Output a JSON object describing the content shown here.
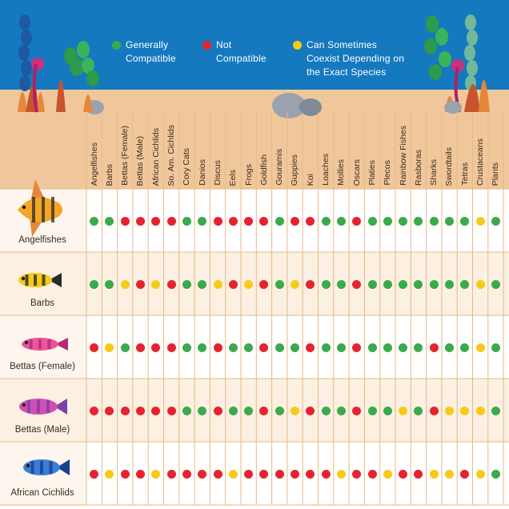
{
  "colors": {
    "green": "#3aaa4c",
    "red": "#e5232e",
    "yellow": "#f6cb17",
    "ocean": "#1579bf",
    "sand": "#f0c79a",
    "sand_dark": "#e7b98a",
    "row_alt": "#fbf0e2"
  },
  "legend": [
    {
      "key": "green",
      "line1": "Generally",
      "line2": "Compatible",
      "line3": ""
    },
    {
      "key": "red",
      "line1": "Not",
      "line2": "Compatible",
      "line3": ""
    },
    {
      "key": "yellow",
      "line1": "Can Sometimes",
      "line2": "Coexist Depending on",
      "line3": "the Exact Species"
    }
  ],
  "columns": [
    "Angelfishes",
    "Barbs",
    "Bettas (Female)",
    "Bettas (Male)",
    "African Cichlids",
    "So. Am. Cichlids",
    "Cory Cats",
    "Danios",
    "Discus",
    "Eels",
    "Frogs",
    "Goldfish",
    "Gouramis",
    "Guppies",
    "Koi",
    "Loaches",
    "Mollies",
    "Oscars",
    "Platies",
    "Plecos",
    "Rainbow Fishes",
    "Rasboras",
    "Sharks",
    "Swordtails",
    "Tetras",
    "Crustaceans",
    "Plants"
  ],
  "rows": [
    {
      "label": "Angelfishes",
      "icon": "angelfish-icon",
      "values": [
        "g",
        "g",
        "r",
        "r",
        "r",
        "r",
        "g",
        "g",
        "r",
        "r",
        "r",
        "r",
        "g",
        "r",
        "r",
        "g",
        "g",
        "r",
        "g",
        "g",
        "g",
        "g",
        "g",
        "g",
        "g",
        "y",
        "g"
      ]
    },
    {
      "label": "Barbs",
      "icon": "barb-fish-icon",
      "values": [
        "g",
        "g",
        "y",
        "r",
        "y",
        "r",
        "g",
        "g",
        "y",
        "r",
        "y",
        "r",
        "g",
        "y",
        "r",
        "g",
        "g",
        "r",
        "g",
        "g",
        "g",
        "g",
        "g",
        "g",
        "g",
        "y",
        "g"
      ]
    },
    {
      "label": "Bettas (Female)",
      "icon": "female-betta-icon",
      "values": [
        "r",
        "y",
        "g",
        "r",
        "r",
        "r",
        "g",
        "g",
        "r",
        "g",
        "g",
        "r",
        "g",
        "g",
        "r",
        "g",
        "g",
        "r",
        "g",
        "g",
        "g",
        "g",
        "r",
        "g",
        "g",
        "y",
        "g"
      ]
    },
    {
      "label": "Bettas (Male)",
      "icon": "male-betta-icon",
      "values": [
        "r",
        "r",
        "r",
        "r",
        "r",
        "r",
        "g",
        "g",
        "r",
        "g",
        "g",
        "r",
        "g",
        "y",
        "r",
        "g",
        "g",
        "r",
        "g",
        "g",
        "y",
        "g",
        "r",
        "y",
        "y",
        "y",
        "g"
      ]
    },
    {
      "label": "African Cichlids",
      "icon": "african-cichlid-icon",
      "values": [
        "r",
        "y",
        "r",
        "r",
        "y",
        "r",
        "r",
        "r",
        "r",
        "y",
        "r",
        "r",
        "r",
        "r",
        "r",
        "r",
        "y",
        "r",
        "r",
        "y",
        "r",
        "r",
        "y",
        "y",
        "r",
        "y",
        "g"
      ]
    }
  ]
}
